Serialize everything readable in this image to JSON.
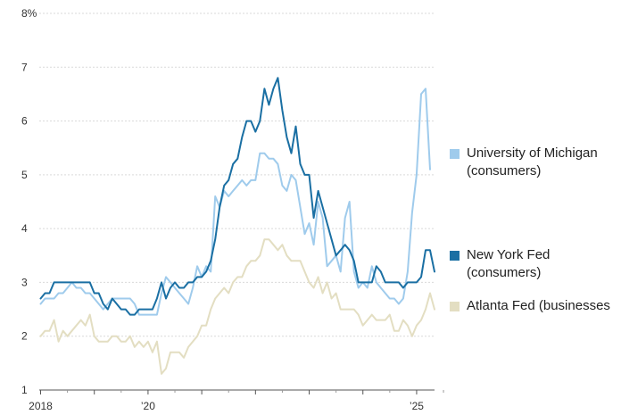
{
  "chart_data": {
    "type": "line",
    "title": "",
    "xlabel": "",
    "ylabel": "",
    "ylim": [
      1,
      8
    ],
    "y_ticks": [
      1,
      2,
      3,
      4,
      5,
      6,
      7,
      8
    ],
    "y_tick_labels": [
      "1",
      "2",
      "3",
      "4",
      "5",
      "6",
      "7",
      "8%"
    ],
    "xlim": [
      "2018-01",
      "2025-06"
    ],
    "x_tick_labels": [
      {
        "x": "2018-01",
        "label": "2018"
      },
      {
        "x": "2020-01",
        "label": "’20"
      },
      {
        "x": "2025-01",
        "label": "’25"
      }
    ],
    "x_minor_ticks": [
      "2018-01",
      "2019-01",
      "2020-01",
      "2021-01",
      "2022-01",
      "2023-01",
      "2024-01",
      "2025-01"
    ],
    "grid": true,
    "legend_position": "right",
    "series": [
      {
        "name": "University of Michigan\n(consumers)",
        "color": "#9fcbec",
        "points": [
          [
            "2018-01",
            2.6
          ],
          [
            "2018-02",
            2.7
          ],
          [
            "2018-03",
            2.7
          ],
          [
            "2018-04",
            2.7
          ],
          [
            "2018-05",
            2.8
          ],
          [
            "2018-06",
            2.8
          ],
          [
            "2018-07",
            2.9
          ],
          [
            "2018-08",
            3.0
          ],
          [
            "2018-09",
            2.9
          ],
          [
            "2018-10",
            2.9
          ],
          [
            "2018-11",
            2.8
          ],
          [
            "2018-12",
            2.8
          ],
          [
            "2019-01",
            2.7
          ],
          [
            "2019-02",
            2.6
          ],
          [
            "2019-03",
            2.5
          ],
          [
            "2019-04",
            2.6
          ],
          [
            "2019-05",
            2.7
          ],
          [
            "2019-06",
            2.7
          ],
          [
            "2019-07",
            2.7
          ],
          [
            "2019-08",
            2.7
          ],
          [
            "2019-09",
            2.7
          ],
          [
            "2019-10",
            2.6
          ],
          [
            "2019-11",
            2.4
          ],
          [
            "2019-12",
            2.4
          ],
          [
            "2020-01",
            2.4
          ],
          [
            "2020-02",
            2.4
          ],
          [
            "2020-03",
            2.4
          ],
          [
            "2020-04",
            2.8
          ],
          [
            "2020-05",
            3.1
          ],
          [
            "2020-06",
            3.0
          ],
          [
            "2020-07",
            2.9
          ],
          [
            "2020-08",
            2.8
          ],
          [
            "2020-09",
            2.7
          ],
          [
            "2020-10",
            2.6
          ],
          [
            "2020-11",
            2.9
          ],
          [
            "2020-12",
            3.3
          ],
          [
            "2021-01",
            3.1
          ],
          [
            "2021-02",
            3.3
          ],
          [
            "2021-03",
            3.2
          ],
          [
            "2021-04",
            4.6
          ],
          [
            "2021-05",
            4.4
          ],
          [
            "2021-06",
            4.7
          ],
          [
            "2021-07",
            4.6
          ],
          [
            "2021-08",
            4.7
          ],
          [
            "2021-09",
            4.8
          ],
          [
            "2021-10",
            4.9
          ],
          [
            "2021-11",
            4.8
          ],
          [
            "2021-12",
            4.9
          ],
          [
            "2022-01",
            4.9
          ],
          [
            "2022-02",
            5.4
          ],
          [
            "2022-03",
            5.4
          ],
          [
            "2022-04",
            5.3
          ],
          [
            "2022-05",
            5.3
          ],
          [
            "2022-06",
            5.2
          ],
          [
            "2022-07",
            4.8
          ],
          [
            "2022-08",
            4.7
          ],
          [
            "2022-09",
            5.0
          ],
          [
            "2022-10",
            4.9
          ],
          [
            "2022-11",
            4.4
          ],
          [
            "2022-12",
            3.9
          ],
          [
            "2023-01",
            4.1
          ],
          [
            "2023-02",
            3.7
          ],
          [
            "2023-03",
            4.5
          ],
          [
            "2023-04",
            4.2
          ],
          [
            "2023-05",
            3.3
          ],
          [
            "2023-06",
            3.4
          ],
          [
            "2023-07",
            3.5
          ],
          [
            "2023-08",
            3.2
          ],
          [
            "2023-09",
            4.2
          ],
          [
            "2023-10",
            4.5
          ],
          [
            "2023-11",
            3.2
          ],
          [
            "2023-12",
            2.9
          ],
          [
            "2024-01",
            3.0
          ],
          [
            "2024-02",
            2.9
          ],
          [
            "2024-03",
            3.3
          ],
          [
            "2024-04",
            3.0
          ],
          [
            "2024-05",
            2.9
          ],
          [
            "2024-06",
            2.8
          ],
          [
            "2024-07",
            2.7
          ],
          [
            "2024-08",
            2.7
          ],
          [
            "2024-09",
            2.6
          ],
          [
            "2024-10",
            2.7
          ],
          [
            "2024-11",
            3.2
          ],
          [
            "2024-12",
            4.3
          ],
          [
            "2025-01",
            5.0
          ],
          [
            "2025-02",
            6.5
          ],
          [
            "2025-03",
            6.6
          ],
          [
            "2025-04",
            5.1
          ]
        ]
      },
      {
        "name": "New York Fed\n(consumers)",
        "color": "#1a6fa3",
        "points": [
          [
            "2018-01",
            2.7
          ],
          [
            "2018-02",
            2.8
          ],
          [
            "2018-03",
            2.8
          ],
          [
            "2018-04",
            3.0
          ],
          [
            "2018-05",
            3.0
          ],
          [
            "2018-06",
            3.0
          ],
          [
            "2018-07",
            3.0
          ],
          [
            "2018-08",
            3.0
          ],
          [
            "2018-09",
            3.0
          ],
          [
            "2018-10",
            3.0
          ],
          [
            "2018-11",
            3.0
          ],
          [
            "2018-12",
            3.0
          ],
          [
            "2019-01",
            2.8
          ],
          [
            "2019-02",
            2.8
          ],
          [
            "2019-03",
            2.6
          ],
          [
            "2019-04",
            2.5
          ],
          [
            "2019-05",
            2.7
          ],
          [
            "2019-06",
            2.6
          ],
          [
            "2019-07",
            2.5
          ],
          [
            "2019-08",
            2.5
          ],
          [
            "2019-09",
            2.4
          ],
          [
            "2019-10",
            2.4
          ],
          [
            "2019-11",
            2.5
          ],
          [
            "2019-12",
            2.5
          ],
          [
            "2020-01",
            2.5
          ],
          [
            "2020-02",
            2.5
          ],
          [
            "2020-03",
            2.7
          ],
          [
            "2020-04",
            3.0
          ],
          [
            "2020-05",
            2.7
          ],
          [
            "2020-06",
            2.9
          ],
          [
            "2020-07",
            3.0
          ],
          [
            "2020-08",
            2.9
          ],
          [
            "2020-09",
            2.9
          ],
          [
            "2020-10",
            3.0
          ],
          [
            "2020-11",
            3.0
          ],
          [
            "2020-12",
            3.1
          ],
          [
            "2021-01",
            3.1
          ],
          [
            "2021-02",
            3.2
          ],
          [
            "2021-03",
            3.4
          ],
          [
            "2021-04",
            3.8
          ],
          [
            "2021-05",
            4.4
          ],
          [
            "2021-06",
            4.8
          ],
          [
            "2021-07",
            4.9
          ],
          [
            "2021-08",
            5.2
          ],
          [
            "2021-09",
            5.3
          ],
          [
            "2021-10",
            5.7
          ],
          [
            "2021-11",
            6.0
          ],
          [
            "2021-12",
            6.0
          ],
          [
            "2022-01",
            5.8
          ],
          [
            "2022-02",
            6.0
          ],
          [
            "2022-03",
            6.6
          ],
          [
            "2022-04",
            6.3
          ],
          [
            "2022-05",
            6.6
          ],
          [
            "2022-06",
            6.8
          ],
          [
            "2022-07",
            6.2
          ],
          [
            "2022-08",
            5.7
          ],
          [
            "2022-09",
            5.4
          ],
          [
            "2022-10",
            5.9
          ],
          [
            "2022-11",
            5.2
          ],
          [
            "2022-12",
            5.0
          ],
          [
            "2023-01",
            5.0
          ],
          [
            "2023-02",
            4.2
          ],
          [
            "2023-03",
            4.7
          ],
          [
            "2023-04",
            4.4
          ],
          [
            "2023-05",
            4.1
          ],
          [
            "2023-06",
            3.8
          ],
          [
            "2023-07",
            3.5
          ],
          [
            "2023-08",
            3.6
          ],
          [
            "2023-09",
            3.7
          ],
          [
            "2023-10",
            3.6
          ],
          [
            "2023-11",
            3.4
          ],
          [
            "2023-12",
            3.0
          ],
          [
            "2024-01",
            3.0
          ],
          [
            "2024-02",
            3.0
          ],
          [
            "2024-03",
            3.0
          ],
          [
            "2024-04",
            3.3
          ],
          [
            "2024-05",
            3.2
          ],
          [
            "2024-06",
            3.0
          ],
          [
            "2024-07",
            3.0
          ],
          [
            "2024-08",
            3.0
          ],
          [
            "2024-09",
            3.0
          ],
          [
            "2024-10",
            2.9
          ],
          [
            "2024-11",
            3.0
          ],
          [
            "2024-12",
            3.0
          ],
          [
            "2025-01",
            3.0
          ],
          [
            "2025-02",
            3.1
          ],
          [
            "2025-03",
            3.6
          ],
          [
            "2025-04",
            3.6
          ],
          [
            "2025-05",
            3.2
          ]
        ]
      },
      {
        "name": "Atlanta Fed (businesses",
        "color": "#e3dec2",
        "points": [
          [
            "2018-01",
            2.0
          ],
          [
            "2018-02",
            2.1
          ],
          [
            "2018-03",
            2.1
          ],
          [
            "2018-04",
            2.3
          ],
          [
            "2018-05",
            1.9
          ],
          [
            "2018-06",
            2.1
          ],
          [
            "2018-07",
            2.0
          ],
          [
            "2018-08",
            2.1
          ],
          [
            "2018-09",
            2.2
          ],
          [
            "2018-10",
            2.3
          ],
          [
            "2018-11",
            2.2
          ],
          [
            "2018-12",
            2.4
          ],
          [
            "2019-01",
            2.0
          ],
          [
            "2019-02",
            1.9
          ],
          [
            "2019-03",
            1.9
          ],
          [
            "2019-04",
            1.9
          ],
          [
            "2019-05",
            2.0
          ],
          [
            "2019-06",
            2.0
          ],
          [
            "2019-07",
            1.9
          ],
          [
            "2019-08",
            1.9
          ],
          [
            "2019-09",
            2.0
          ],
          [
            "2019-10",
            1.8
          ],
          [
            "2019-11",
            1.9
          ],
          [
            "2019-12",
            1.8
          ],
          [
            "2020-01",
            1.9
          ],
          [
            "2020-02",
            1.7
          ],
          [
            "2020-03",
            1.9
          ],
          [
            "2020-04",
            1.3
          ],
          [
            "2020-05",
            1.4
          ],
          [
            "2020-06",
            1.7
          ],
          [
            "2020-07",
            1.7
          ],
          [
            "2020-08",
            1.7
          ],
          [
            "2020-09",
            1.6
          ],
          [
            "2020-10",
            1.8
          ],
          [
            "2020-11",
            1.9
          ],
          [
            "2020-12",
            2.0
          ],
          [
            "2021-01",
            2.2
          ],
          [
            "2021-02",
            2.2
          ],
          [
            "2021-03",
            2.5
          ],
          [
            "2021-04",
            2.7
          ],
          [
            "2021-05",
            2.8
          ],
          [
            "2021-06",
            2.9
          ],
          [
            "2021-07",
            2.8
          ],
          [
            "2021-08",
            3.0
          ],
          [
            "2021-09",
            3.1
          ],
          [
            "2021-10",
            3.1
          ],
          [
            "2021-11",
            3.3
          ],
          [
            "2021-12",
            3.4
          ],
          [
            "2022-01",
            3.4
          ],
          [
            "2022-02",
            3.5
          ],
          [
            "2022-03",
            3.8
          ],
          [
            "2022-04",
            3.8
          ],
          [
            "2022-05",
            3.7
          ],
          [
            "2022-06",
            3.6
          ],
          [
            "2022-07",
            3.7
          ],
          [
            "2022-08",
            3.5
          ],
          [
            "2022-09",
            3.4
          ],
          [
            "2022-10",
            3.4
          ],
          [
            "2022-11",
            3.4
          ],
          [
            "2022-12",
            3.2
          ],
          [
            "2023-01",
            3.0
          ],
          [
            "2023-02",
            2.9
          ],
          [
            "2023-03",
            3.1
          ],
          [
            "2023-04",
            2.8
          ],
          [
            "2023-05",
            3.0
          ],
          [
            "2023-06",
            2.7
          ],
          [
            "2023-07",
            2.8
          ],
          [
            "2023-08",
            2.5
          ],
          [
            "2023-09",
            2.5
          ],
          [
            "2023-10",
            2.5
          ],
          [
            "2023-11",
            2.5
          ],
          [
            "2023-12",
            2.4
          ],
          [
            "2024-01",
            2.2
          ],
          [
            "2024-02",
            2.3
          ],
          [
            "2024-03",
            2.4
          ],
          [
            "2024-04",
            2.3
          ],
          [
            "2024-05",
            2.3
          ],
          [
            "2024-06",
            2.3
          ],
          [
            "2024-07",
            2.4
          ],
          [
            "2024-08",
            2.1
          ],
          [
            "2024-09",
            2.1
          ],
          [
            "2024-10",
            2.3
          ],
          [
            "2024-11",
            2.2
          ],
          [
            "2024-12",
            2.0
          ],
          [
            "2025-01",
            2.2
          ],
          [
            "2025-02",
            2.3
          ],
          [
            "2025-03",
            2.5
          ],
          [
            "2025-04",
            2.8
          ],
          [
            "2025-05",
            2.5
          ]
        ]
      }
    ]
  }
}
